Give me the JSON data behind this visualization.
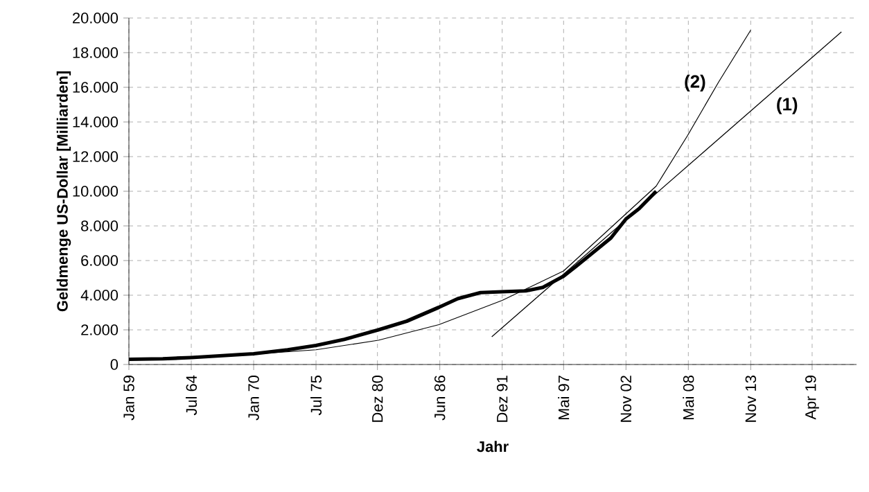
{
  "chart_data": {
    "type": "line",
    "xlabel": "Jahr",
    "ylabel": "Geldmenge US-Dollar [Milliarden]",
    "xlim": [
      "1959-01",
      "2023-03"
    ],
    "ylim": [
      0,
      20000
    ],
    "xticks": [
      {
        "value": "1959-01",
        "label": "Jan 59"
      },
      {
        "value": "1964-07",
        "label": "Jul 64"
      },
      {
        "value": "1970-01",
        "label": "Jan 70"
      },
      {
        "value": "1975-07",
        "label": "Jul 75"
      },
      {
        "value": "1980-12",
        "label": "Dez 80"
      },
      {
        "value": "1986-06",
        "label": "Jun 86"
      },
      {
        "value": "1991-12",
        "label": "Dez 91"
      },
      {
        "value": "1997-05",
        "label": "Mai 97"
      },
      {
        "value": "2002-11",
        "label": "Nov 02"
      },
      {
        "value": "2008-05",
        "label": "Mai 08"
      },
      {
        "value": "2013-11",
        "label": "Nov 13"
      },
      {
        "value": "2019-04",
        "label": "Apr 19"
      }
    ],
    "yticks": [
      0,
      {
        "value": 2000,
        "label": "2.000"
      },
      {
        "value": 4000,
        "label": "4.000"
      },
      {
        "value": 6000,
        "label": "6.000"
      },
      {
        "value": 8000,
        "label": "8.000"
      },
      {
        "value": 10000,
        "label": "10.000"
      },
      {
        "value": 12000,
        "label": "12.000"
      },
      {
        "value": 14000,
        "label": "14.000"
      },
      {
        "value": 16000,
        "label": "16.000"
      },
      {
        "value": 18000,
        "label": "18.000"
      },
      {
        "value": 20000,
        "label": "20.000"
      }
    ],
    "grid": true,
    "line_style": "solid",
    "marker": "none",
    "series": [
      {
        "color": "#000000",
        "x": [
          "1959-01",
          "1962-01",
          "1964-07",
          "1967-01",
          "1970-01",
          "1973-01",
          "1975-07",
          "1978-01",
          "1981-01",
          "1983-07",
          "1986-05",
          "1988-01",
          "1990-01",
          "1991-12",
          "1994-01",
          "1995-07",
          "1997-05",
          "1998-07",
          "2000-01",
          "2001-07",
          "2002-11",
          "2004-01",
          "2005-07"
        ],
        "values": [
          300,
          330,
          400,
          500,
          620,
          850,
          1100,
          1450,
          2000,
          2500,
          3300,
          3800,
          4150,
          4200,
          4250,
          4450,
          5100,
          5700,
          6500,
          7300,
          8400,
          9000,
          10000
        ]
      },
      {
        "name": "(1)",
        "color": "#000000",
        "x": [
          "1991-01",
          "2021-11"
        ],
        "values": [
          1600,
          19200
        ]
      },
      {
        "name": "(2)",
        "color": "#000000",
        "x": [
          "1959-01",
          "1970-01",
          "1975-07",
          "1981-01",
          "1986-05",
          "1991-12",
          "1997-05",
          "2002-11",
          "2005-07",
          "2008-04",
          "2011-01",
          "2013-11"
        ],
        "values": [
          300,
          600,
          850,
          1400,
          2300,
          3700,
          5400,
          8700,
          10300,
          13200,
          16300,
          19300
        ]
      }
    ]
  }
}
